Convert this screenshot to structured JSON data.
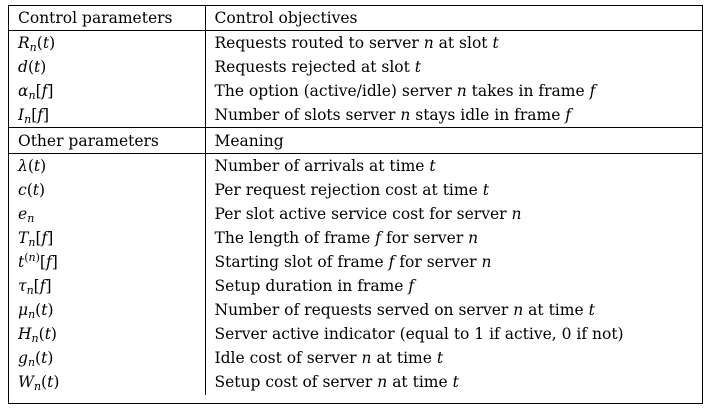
{
  "sections": [
    {
      "header": [
        "Control parameters",
        "Control objectives"
      ],
      "rows": [
        {
          "symbol": "R_n(t)",
          "meaning": "Requests routed to server n at slot t"
        },
        {
          "symbol": "d(t)",
          "meaning": "Requests rejected at slot t"
        },
        {
          "symbol": "α_n[f]",
          "meaning": "The option (active/idle) server n takes in frame f"
        },
        {
          "symbol": "I_n[f]",
          "meaning": "Number of slots server n stays idle in frame f"
        }
      ]
    },
    {
      "header": [
        "Other parameters",
        "Meaning"
      ],
      "rows": [
        {
          "symbol": "λ(t)",
          "meaning": "Number of arrivals at time t"
        },
        {
          "symbol": "c(t)",
          "meaning": "Per request rejection cost at time t"
        },
        {
          "symbol": "e_n",
          "meaning": "Per slot active service cost for server n"
        },
        {
          "symbol": "T_n[f]",
          "meaning": "The length of frame f for server n"
        },
        {
          "symbol": "t^(n)[f]",
          "meaning": "Starting slot of frame f for server n"
        },
        {
          "symbol": "τ_n[f]",
          "meaning": "Setup duration in frame f"
        },
        {
          "symbol": "μ_n(t)",
          "meaning": "Number of requests served on server n at time t"
        },
        {
          "symbol": "H_n(t)",
          "meaning": "Server active indicator (equal to 1 if active, 0 if not)"
        },
        {
          "symbol": "g_n(t)",
          "meaning": "Idle cost of server n at time t"
        },
        {
          "symbol": "W_n(t)",
          "meaning": "Setup cost of server n at time t"
        }
      ]
    }
  ]
}
